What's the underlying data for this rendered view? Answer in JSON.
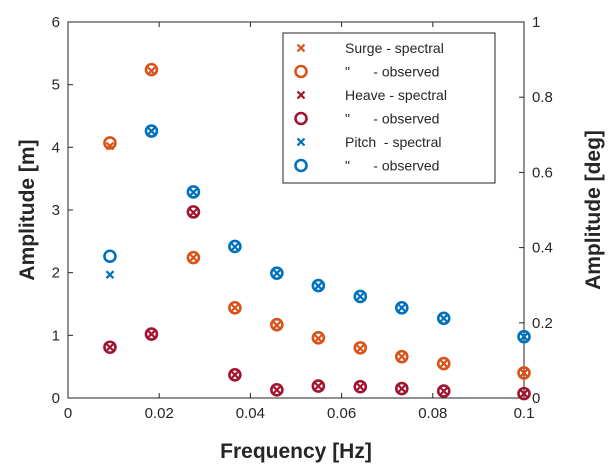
{
  "chart_data": {
    "type": "scatter",
    "xlabel": "Frequency [Hz]",
    "ylabel_left": "Amplitude [m]",
    "ylabel_right": "Amplitude [deg]",
    "xlim": [
      0,
      0.1
    ],
    "ylim_left": [
      0,
      6
    ],
    "ylim_right": [
      0,
      1
    ],
    "xticks": [
      "0",
      "0.02",
      "0.04",
      "0.06",
      "0.08",
      "0.1"
    ],
    "yticks_left": [
      "0",
      "1",
      "2",
      "3",
      "4",
      "5",
      "6"
    ],
    "yticks_right": [
      "0",
      "0.2",
      "0.4",
      "0.6",
      "0.8",
      "1"
    ],
    "grid": false,
    "legend_position": "top-right",
    "series": [
      {
        "name": "Surge - spectral",
        "axis": "left",
        "marker": "x",
        "color": "#D95319",
        "x": [
          0.0092,
          0.0183,
          0.0275,
          0.0366,
          0.0458,
          0.0549,
          0.0641,
          0.0732,
          0.0824,
          0.1
        ],
        "y": [
          4.02,
          5.22,
          2.24,
          1.44,
          1.16,
          0.95,
          0.79,
          0.66,
          0.55,
          0.4
        ]
      },
      {
        "name": "\"      - observed",
        "axis": "left",
        "marker": "o",
        "color": "#D95319",
        "x": [
          0.0092,
          0.0183,
          0.0275,
          0.0366,
          0.0458,
          0.0549,
          0.0641,
          0.0732,
          0.0824,
          0.1
        ],
        "y": [
          4.07,
          5.24,
          2.24,
          1.44,
          1.17,
          0.96,
          0.8,
          0.66,
          0.55,
          0.4
        ]
      },
      {
        "name": "Heave - spectral",
        "axis": "left",
        "marker": "x",
        "color": "#A2142F",
        "x": [
          0.0092,
          0.0183,
          0.0275,
          0.0366,
          0.0458,
          0.0549,
          0.0641,
          0.0732,
          0.0824,
          0.1
        ],
        "y": [
          0.81,
          1.02,
          2.96,
          0.37,
          0.13,
          0.19,
          0.18,
          0.15,
          0.11,
          0.07
        ]
      },
      {
        "name": "\"      - observed",
        "axis": "left",
        "marker": "o",
        "color": "#A2142F",
        "x": [
          0.0092,
          0.0183,
          0.0275,
          0.0366,
          0.0458,
          0.0549,
          0.0641,
          0.0732,
          0.0824,
          0.1
        ],
        "y": [
          0.81,
          1.02,
          2.97,
          0.37,
          0.13,
          0.19,
          0.18,
          0.15,
          0.11,
          0.07
        ]
      },
      {
        "name": "Pitch  - spectral",
        "axis": "right",
        "marker": "x",
        "color": "#0072BD",
        "x": [
          0.0092,
          0.0183,
          0.0275,
          0.0366,
          0.0458,
          0.0549,
          0.0641,
          0.0732,
          0.0824,
          0.1
        ],
        "y": [
          0.328,
          0.71,
          0.547,
          0.402,
          0.332,
          0.298,
          0.27,
          0.24,
          0.212,
          0.163
        ]
      },
      {
        "name": "\"      - observed",
        "axis": "right",
        "marker": "o",
        "color": "#0072BD",
        "x": [
          0.0092,
          0.0183,
          0.0275,
          0.0366,
          0.0458,
          0.0549,
          0.0641,
          0.0732,
          0.0824,
          0.1
        ],
        "y": [
          0.377,
          0.71,
          0.548,
          0.403,
          0.332,
          0.299,
          0.27,
          0.24,
          0.212,
          0.163
        ]
      }
    ]
  }
}
